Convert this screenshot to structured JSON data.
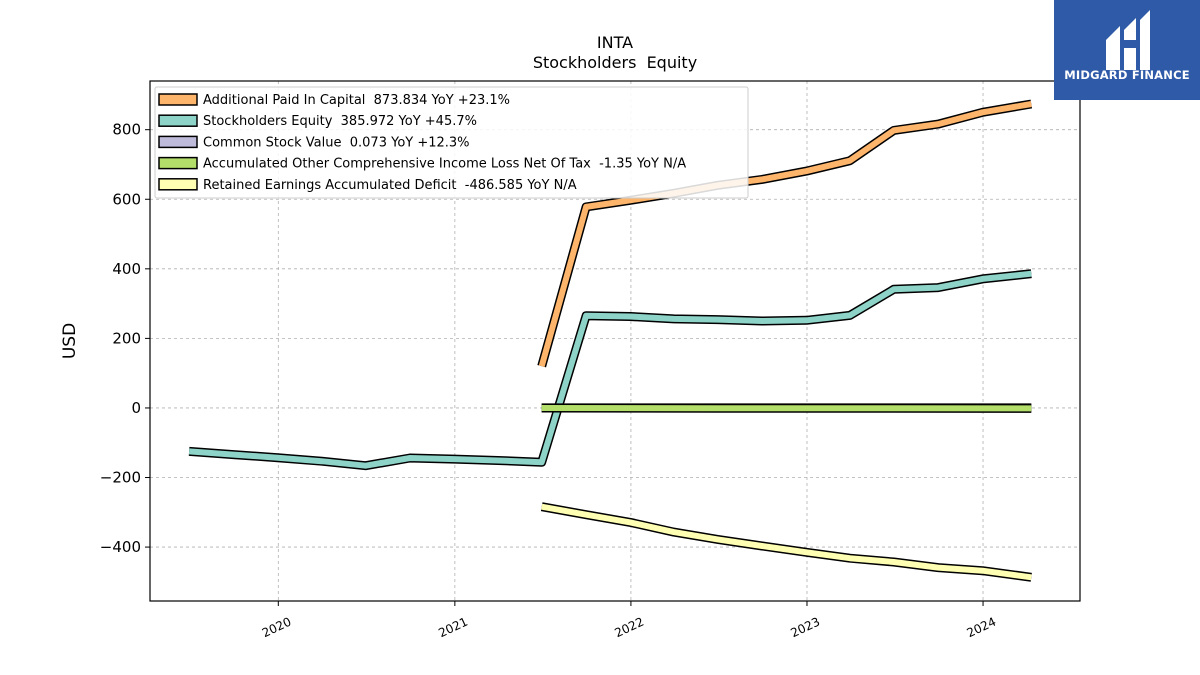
{
  "brand": {
    "name": "MIDGARD FINANCE",
    "bg_color": "#2f5aa8"
  },
  "chart_data": {
    "type": "line",
    "title": "INTA",
    "subtitle": "Stockholders  Equity",
    "xlabel": "",
    "ylabel": "USD",
    "xlim": [
      "2019-04-10",
      "2024-07-20"
    ],
    "ylim": [
      -555,
      940
    ],
    "x_ticks": [
      "2020",
      "2021",
      "2022",
      "2023",
      "2024"
    ],
    "y_ticks": [
      800,
      600,
      400,
      200,
      0,
      -200,
      -400
    ],
    "y_tick_labels": [
      "800",
      "600",
      "400",
      "200",
      "0",
      "−200",
      "−400"
    ],
    "grid": true,
    "legend_position": "top-left",
    "series": [
      {
        "name": "Additional Paid In Capital  873.834 YoY +23.1%",
        "color": "#fdb46b",
        "points": [
          [
            "2021-06-30",
            120
          ],
          [
            "2021-09-30",
            578
          ],
          [
            "2021-12-31",
            597
          ],
          [
            "2022-03-31",
            617
          ],
          [
            "2022-06-30",
            640
          ],
          [
            "2022-09-30",
            657
          ],
          [
            "2022-12-31",
            681
          ],
          [
            "2023-03-31",
            711
          ],
          [
            "2023-06-30",
            798
          ],
          [
            "2023-09-30",
            816
          ],
          [
            "2023-12-31",
            850
          ],
          [
            "2024-04-10",
            874
          ]
        ]
      },
      {
        "name": "Stockholders Equity  385.972 YoY +45.7%",
        "color": "#8dd3c7",
        "points": [
          [
            "2019-06-30",
            -125
          ],
          [
            "2019-09-30",
            -134
          ],
          [
            "2019-12-31",
            -143
          ],
          [
            "2020-03-31",
            -153
          ],
          [
            "2020-06-30",
            -166
          ],
          [
            "2020-09-30",
            -144
          ],
          [
            "2020-12-31",
            -147
          ],
          [
            "2021-03-31",
            -151
          ],
          [
            "2021-06-30",
            -156
          ],
          [
            "2021-09-30",
            265
          ],
          [
            "2021-12-31",
            263
          ],
          [
            "2022-03-31",
            256
          ],
          [
            "2022-06-30",
            254
          ],
          [
            "2022-09-30",
            250
          ],
          [
            "2022-12-31",
            252
          ],
          [
            "2023-03-31",
            266
          ],
          [
            "2023-06-30",
            341
          ],
          [
            "2023-09-30",
            346
          ],
          [
            "2023-12-31",
            371
          ],
          [
            "2024-04-10",
            386
          ]
        ]
      },
      {
        "name": "Common Stock Value  0.073 YoY +12.3%",
        "color": "#bebada",
        "points": [
          [
            "2021-06-30",
            0.06
          ],
          [
            "2024-04-10",
            0.073
          ]
        ]
      },
      {
        "name": "Accumulated Other Comprehensive Income Loss Net Of Tax  -1.35 YoY N/A",
        "color": "#b3de69",
        "points": [
          [
            "2021-06-30",
            0
          ],
          [
            "2022-06-30",
            -1
          ],
          [
            "2023-06-30",
            -1
          ],
          [
            "2024-04-10",
            -1.35
          ]
        ]
      },
      {
        "name": "Retained Earnings Accumulated Deficit  -486.585 YoY N/A",
        "color": "#ffffb3",
        "points": [
          [
            "2021-06-30",
            -284
          ],
          [
            "2021-09-30",
            -307
          ],
          [
            "2021-12-31",
            -329
          ],
          [
            "2022-03-31",
            -357
          ],
          [
            "2022-06-30",
            -378
          ],
          [
            "2022-09-30",
            -397
          ],
          [
            "2022-12-31",
            -415
          ],
          [
            "2023-03-31",
            -432
          ],
          [
            "2023-06-30",
            -443
          ],
          [
            "2023-09-30",
            -459
          ],
          [
            "2023-12-31",
            -468
          ],
          [
            "2024-04-10",
            -487
          ]
        ]
      }
    ]
  }
}
